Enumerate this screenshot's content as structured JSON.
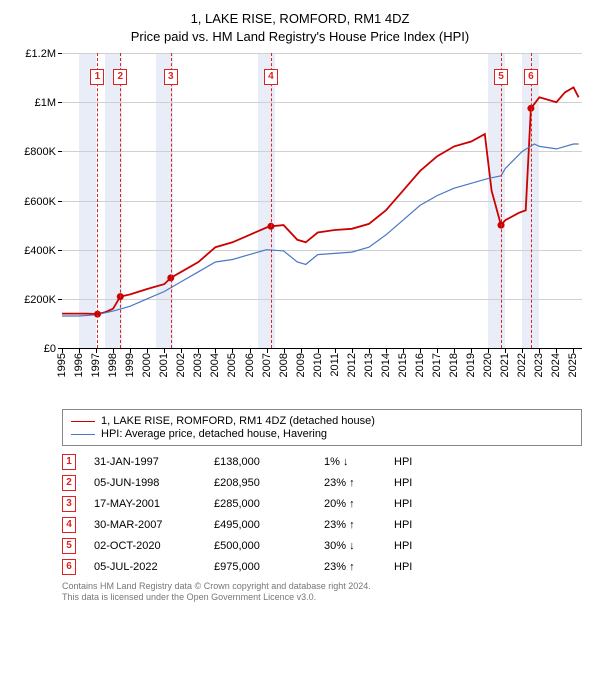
{
  "title": "1, LAKE RISE, ROMFORD, RM1 4DZ",
  "subtitle": "Price paid vs. HM Land Registry's House Price Index (HPI)",
  "chart": {
    "type": "line",
    "x": {
      "min": 1995,
      "max": 2025.5,
      "ticks": [
        1995,
        1996,
        1997,
        1998,
        1999,
        2000,
        2001,
        2002,
        2003,
        2004,
        2005,
        2006,
        2007,
        2008,
        2009,
        2010,
        2011,
        2012,
        2013,
        2014,
        2015,
        2016,
        2017,
        2018,
        2019,
        2020,
        2021,
        2022,
        2023,
        2024,
        2025
      ]
    },
    "y": {
      "min": 0,
      "max": 1200000,
      "ticks": [
        0,
        200000,
        400000,
        600000,
        800000,
        1000000,
        1200000
      ],
      "labels": [
        "£0",
        "£200K",
        "£400K",
        "£600K",
        "£800K",
        "£1M",
        "£1.2M"
      ]
    },
    "highlight_bands": [
      {
        "from": 1996,
        "to": 1997
      },
      {
        "from": 1997.5,
        "to": 1998.5
      },
      {
        "from": 2000.5,
        "to": 2001.5
      },
      {
        "from": 2006.5,
        "to": 2007.5
      },
      {
        "from": 2020,
        "to": 2021
      },
      {
        "from": 2022,
        "to": 2023
      }
    ],
    "highlight_color": "#e8edf7",
    "grid_color": "#d0d0d0",
    "series": [
      {
        "name": "1, LAKE RISE, ROMFORD, RM1 4DZ (detached house)",
        "color": "#cc0000",
        "width": 1.8,
        "points": [
          [
            1995,
            140000
          ],
          [
            1996.5,
            140000
          ],
          [
            1997.08,
            138000
          ],
          [
            1997.5,
            145000
          ],
          [
            1998,
            160000
          ],
          [
            1998.42,
            208950
          ],
          [
            1999,
            218000
          ],
          [
            2000,
            240000
          ],
          [
            2001,
            260000
          ],
          [
            2001.38,
            285000
          ],
          [
            2002,
            310000
          ],
          [
            2003,
            350000
          ],
          [
            2004,
            410000
          ],
          [
            2005,
            430000
          ],
          [
            2006,
            460000
          ],
          [
            2007,
            490000
          ],
          [
            2007.25,
            495000
          ],
          [
            2008,
            500000
          ],
          [
            2008.8,
            440000
          ],
          [
            2009.3,
            430000
          ],
          [
            2010,
            470000
          ],
          [
            2011,
            480000
          ],
          [
            2012,
            485000
          ],
          [
            2013,
            505000
          ],
          [
            2014,
            560000
          ],
          [
            2015,
            640000
          ],
          [
            2016,
            720000
          ],
          [
            2017,
            780000
          ],
          [
            2018,
            820000
          ],
          [
            2019,
            840000
          ],
          [
            2019.8,
            870000
          ],
          [
            2020.2,
            640000
          ],
          [
            2020.75,
            500000
          ],
          [
            2021,
            520000
          ],
          [
            2021.8,
            550000
          ],
          [
            2022.2,
            560000
          ],
          [
            2022.5,
            975000
          ],
          [
            2023,
            1020000
          ],
          [
            2024,
            1000000
          ],
          [
            2024.5,
            1040000
          ],
          [
            2025,
            1060000
          ],
          [
            2025.3,
            1020000
          ]
        ]
      },
      {
        "name": "HPI: Average price, detached house, Havering",
        "color": "#4a78c4",
        "width": 1.2,
        "points": [
          [
            1995,
            130000
          ],
          [
            1996,
            130000
          ],
          [
            1997,
            135000
          ],
          [
            1998,
            150000
          ],
          [
            1999,
            170000
          ],
          [
            2000,
            200000
          ],
          [
            2001,
            230000
          ],
          [
            2002,
            270000
          ],
          [
            2003,
            310000
          ],
          [
            2004,
            350000
          ],
          [
            2005,
            360000
          ],
          [
            2006,
            380000
          ],
          [
            2007,
            400000
          ],
          [
            2008,
            395000
          ],
          [
            2008.8,
            350000
          ],
          [
            2009.3,
            340000
          ],
          [
            2010,
            380000
          ],
          [
            2011,
            385000
          ],
          [
            2012,
            390000
          ],
          [
            2013,
            410000
          ],
          [
            2014,
            460000
          ],
          [
            2015,
            520000
          ],
          [
            2016,
            580000
          ],
          [
            2017,
            620000
          ],
          [
            2018,
            650000
          ],
          [
            2019,
            670000
          ],
          [
            2020,
            690000
          ],
          [
            2020.75,
            700000
          ],
          [
            2021,
            730000
          ],
          [
            2022,
            800000
          ],
          [
            2022.7,
            830000
          ],
          [
            2023,
            820000
          ],
          [
            2024,
            810000
          ],
          [
            2025,
            830000
          ],
          [
            2025.3,
            830000
          ]
        ]
      }
    ],
    "sale_markers": [
      {
        "n": "1",
        "x": 1997.08,
        "y": 138000
      },
      {
        "n": "2",
        "x": 1998.42,
        "y": 208950
      },
      {
        "n": "3",
        "x": 2001.38,
        "y": 285000
      },
      {
        "n": "4",
        "x": 2007.25,
        "y": 495000
      },
      {
        "n": "5",
        "x": 2020.75,
        "y": 500000
      },
      {
        "n": "6",
        "x": 2022.5,
        "y": 975000
      }
    ],
    "marker_color": "#cc0000"
  },
  "transactions": [
    {
      "n": "1",
      "date": "31-JAN-1997",
      "price": "£138,000",
      "delta": "1%",
      "dir": "↓",
      "vs": "HPI"
    },
    {
      "n": "2",
      "date": "05-JUN-1998",
      "price": "£208,950",
      "delta": "23%",
      "dir": "↑",
      "vs": "HPI"
    },
    {
      "n": "3",
      "date": "17-MAY-2001",
      "price": "£285,000",
      "delta": "20%",
      "dir": "↑",
      "vs": "HPI"
    },
    {
      "n": "4",
      "date": "30-MAR-2007",
      "price": "£495,000",
      "delta": "23%",
      "dir": "↑",
      "vs": "HPI"
    },
    {
      "n": "5",
      "date": "02-OCT-2020",
      "price": "£500,000",
      "delta": "30%",
      "dir": "↓",
      "vs": "HPI"
    },
    {
      "n": "6",
      "date": "05-JUL-2022",
      "price": "£975,000",
      "delta": "23%",
      "dir": "↑",
      "vs": "HPI"
    }
  ],
  "footer": {
    "line1": "Contains HM Land Registry data © Crown copyright and database right 2024.",
    "line2": "This data is licensed under the Open Government Licence v3.0."
  }
}
